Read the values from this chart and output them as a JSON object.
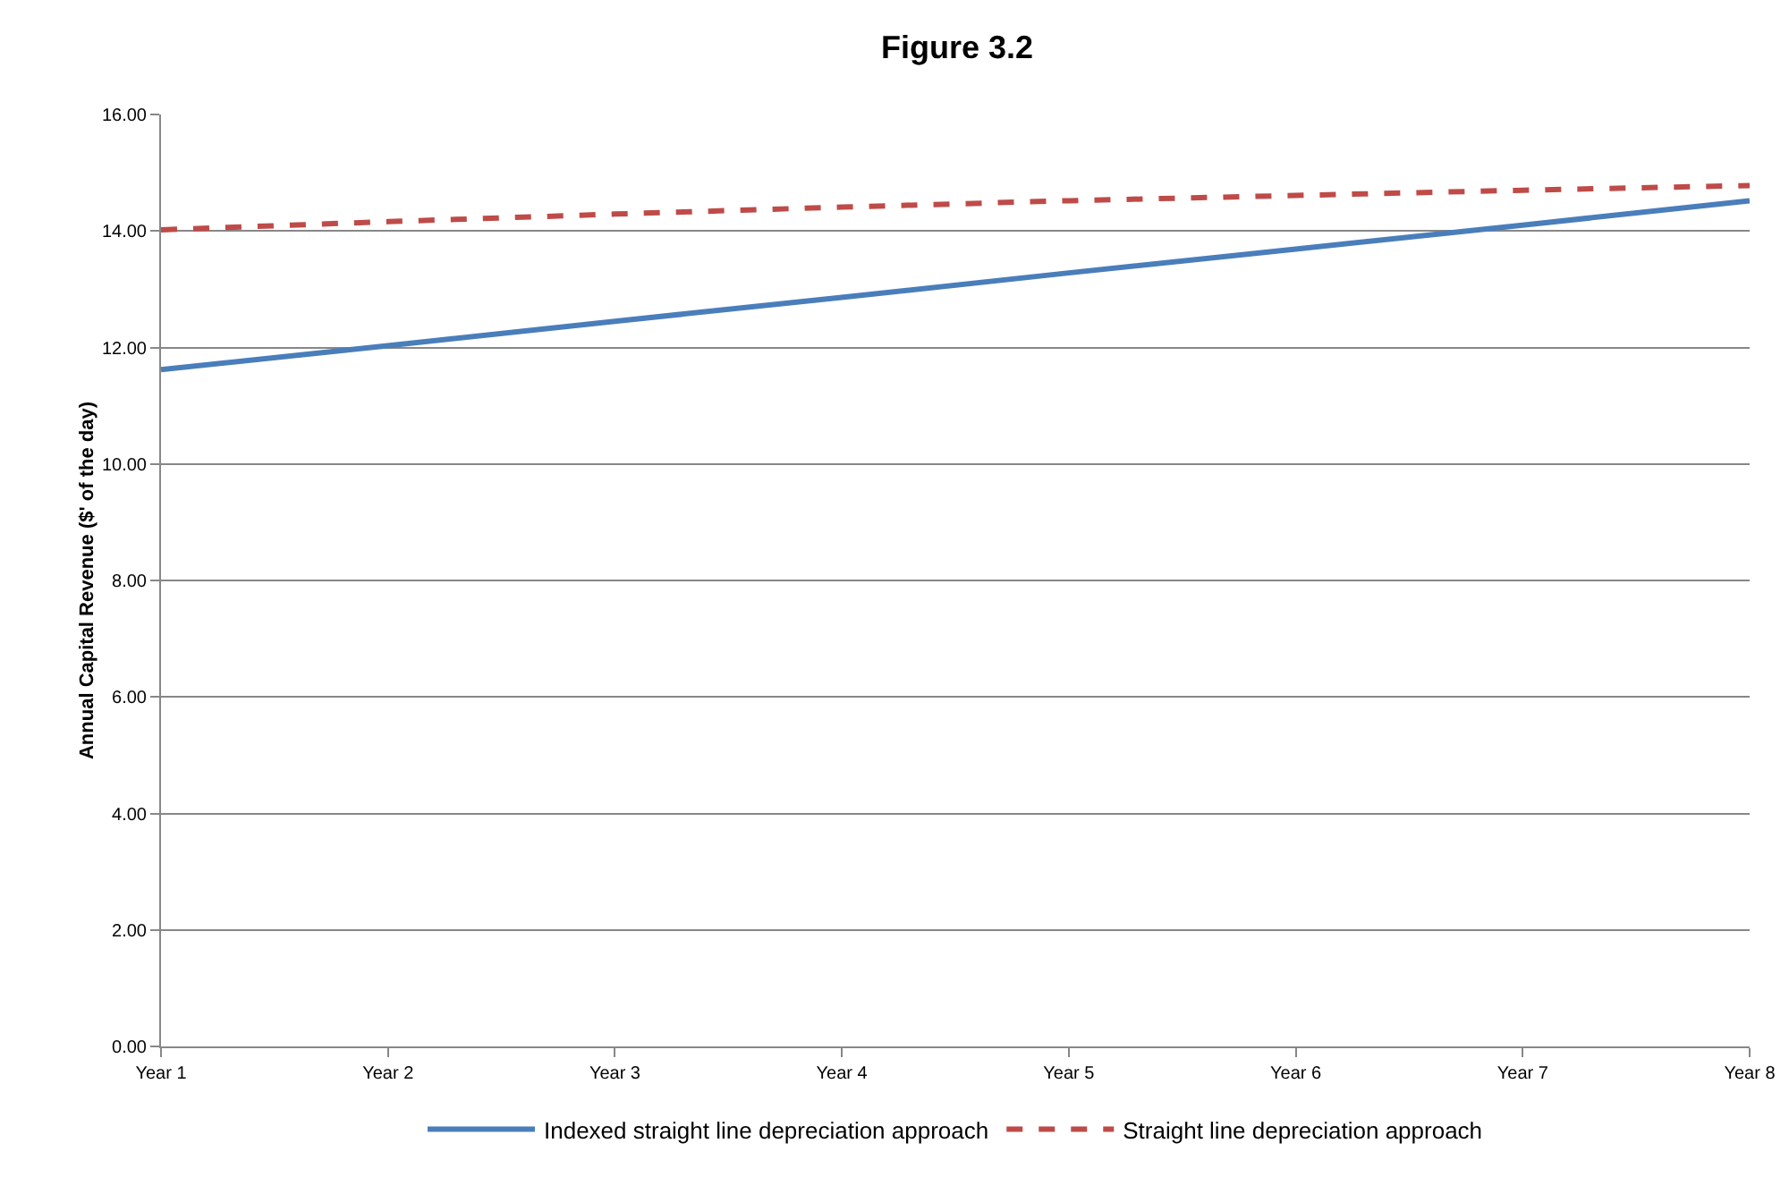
{
  "chart_data": {
    "type": "line",
    "title": "Figure 3.2",
    "ylabel": "Annual Capital Revenue ($' of the day)",
    "categories": [
      "Year 1",
      "Year 2",
      "Year 3",
      "Year 4",
      "Year 5",
      "Year 6",
      "Year 7",
      "Year 8"
    ],
    "series": [
      {
        "name": "Indexed straight line depreciation approach",
        "color": "#4a7ebb",
        "line_style": "solid",
        "values": [
          11.62,
          12.03,
          12.45,
          12.86,
          13.28,
          13.69,
          14.1,
          14.52
        ]
      },
      {
        "name": "Straight line depreciation approach",
        "color": "#be4b48",
        "line_style": "dashed",
        "values": [
          14.02,
          14.16,
          14.29,
          14.41,
          14.52,
          14.61,
          14.7,
          14.78
        ]
      }
    ],
    "ylim": [
      0,
      16
    ],
    "yticks": [
      {
        "value": 0,
        "label": "0.00"
      },
      {
        "value": 2,
        "label": "2.00"
      },
      {
        "value": 4,
        "label": "4.00"
      },
      {
        "value": 6,
        "label": "6.00"
      },
      {
        "value": 8,
        "label": "8.00"
      },
      {
        "value": 10,
        "label": "10.00"
      },
      {
        "value": 12,
        "label": "12.00"
      },
      {
        "value": 14,
        "label": "14.00"
      },
      {
        "value": 16,
        "label": "16.00"
      }
    ],
    "grid": "y",
    "legend": "bottom",
    "marker": "none"
  }
}
